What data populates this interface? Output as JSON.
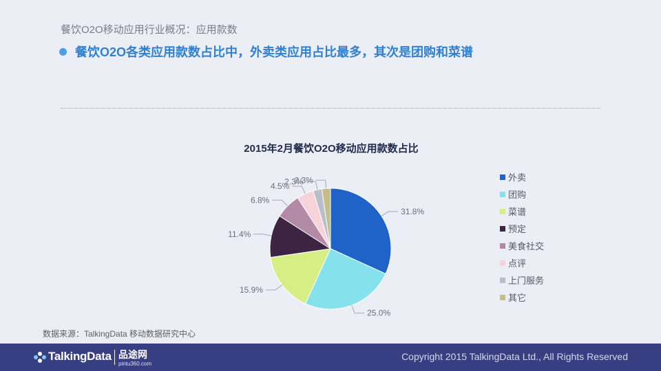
{
  "header": {
    "subtitle": "餐饮O2O移动应用行业概况：应用款数",
    "headline": "餐饮O2O各类应用款数占比中，外卖类应用占比最多，其次是团购和菜谱"
  },
  "chart_data": {
    "type": "pie",
    "title": "2015年2月餐饮O2O移动应用款数占比",
    "unit": "%",
    "legend_position": "right",
    "slices": [
      {
        "label": "外卖",
        "value": 31.8,
        "display": "31.8%",
        "color": "#1f63c8"
      },
      {
        "label": "团购",
        "value": 25.0,
        "display": "25.0%",
        "color": "#85e2ec"
      },
      {
        "label": "菜谱",
        "value": 15.9,
        "display": "15.9%",
        "color": "#d6ef84"
      },
      {
        "label": "预定",
        "value": 11.4,
        "display": "11.4%",
        "color": "#3d2442"
      },
      {
        "label": "美食社交",
        "value": 6.8,
        "display": "6.8%",
        "color": "#b38aa6"
      },
      {
        "label": "点评",
        "value": 4.5,
        "display": "4.5%",
        "color": "#f6d3d8"
      },
      {
        "label": "上门服务",
        "value": 2.3,
        "display": "2.3%",
        "color": "#b9bec9"
      },
      {
        "label": "其它",
        "value": 2.3,
        "display": "2.3%",
        "color": "#c6be88"
      }
    ]
  },
  "source": "数据来源：TalkingData 移动数据研究中心",
  "footer": {
    "logo": "TalkingData",
    "partner": "品途网",
    "partner_url": "pintu360.com",
    "copyright": "Copyright 2015 TalkingData Ltd., All Rights Reserved"
  }
}
